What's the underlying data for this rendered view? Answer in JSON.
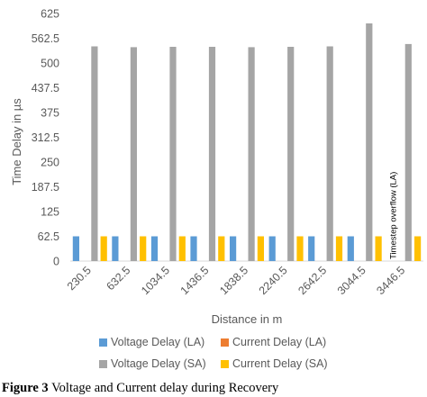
{
  "chart_data": {
    "type": "bar",
    "ylabel": "Time Delay in µs",
    "xlabel": "Distance in m",
    "ylim": [
      0,
      625
    ],
    "yticks": [
      "0",
      "62.5",
      "125",
      "187.5",
      "250",
      "312.5",
      "375",
      "437.5",
      "500",
      "562.5",
      "625"
    ],
    "categories": [
      "230.5",
      "632.5",
      "1034.5",
      "1436.5",
      "1838.5",
      "2240.5",
      "2642.5",
      "3044.5",
      "3446.5"
    ],
    "series": [
      {
        "name": "Voltage Delay (LA)",
        "color": "#5b9bd5",
        "values": [
          62.5,
          62.5,
          62.5,
          62.5,
          62.5,
          62.5,
          62.5,
          62.5,
          null
        ]
      },
      {
        "name": "Current Delay (LA)",
        "color": "#ed7d31",
        "values": [
          0,
          0,
          0,
          0,
          0,
          0,
          0,
          0,
          null
        ]
      },
      {
        "name": "Voltage Delay (SA)",
        "color": "#a5a5a5",
        "values": [
          542,
          540,
          541,
          541,
          540,
          541,
          542,
          600,
          548
        ]
      },
      {
        "name": "Current Delay (SA)",
        "color": "#ffc000",
        "values": [
          62.5,
          62.5,
          62.5,
          62.5,
          62.5,
          62.5,
          62.5,
          62.5,
          62.5
        ]
      }
    ],
    "annotations": [
      {
        "category": "3446.5",
        "text": "Timestep overflow (LA)"
      }
    ],
    "grid": false,
    "legend_position": "bottom"
  },
  "caption": {
    "label": "Figure 3",
    "text": "Voltage and Current delay during Recovery"
  }
}
